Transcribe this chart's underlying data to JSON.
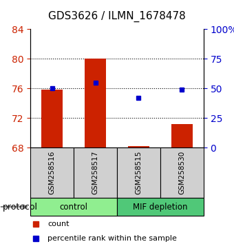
{
  "title": "GDS3626 / ILMN_1678478",
  "samples": [
    "GSM258516",
    "GSM258517",
    "GSM258515",
    "GSM258530"
  ],
  "groups": [
    {
      "name": "control",
      "color": "#90EE90",
      "size": 2
    },
    {
      "name": "MIF depletion",
      "color": "#50C878",
      "size": 2
    }
  ],
  "bar_values": [
    75.8,
    80.0,
    68.2,
    71.2
  ],
  "bar_base": 68,
  "dot_values_pct": [
    50,
    55,
    42,
    49
  ],
  "left_ylim": [
    68,
    84
  ],
  "left_yticks": [
    68,
    72,
    76,
    80,
    84
  ],
  "right_ylim": [
    0,
    100
  ],
  "right_yticks": [
    0,
    25,
    50,
    75,
    100
  ],
  "right_yticklabels": [
    "0",
    "25",
    "50",
    "75",
    "100%"
  ],
  "bar_color": "#CC2200",
  "dot_color": "#0000CC",
  "bar_width": 0.5,
  "protocol_label": "protocol",
  "legend_count": "count",
  "legend_pct": "percentile rank within the sample",
  "left_tick_color": "#CC2200",
  "right_tick_color": "#0000CC"
}
